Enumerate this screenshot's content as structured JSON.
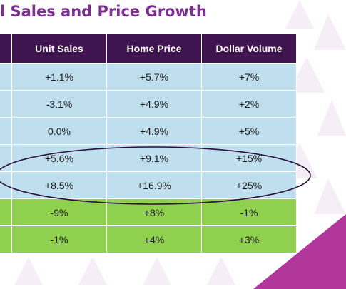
{
  "slide": {
    "title": "l Sales and Price Growth",
    "accent_color": "#7b2f8e",
    "header_color": "#40144f",
    "row_color_blue": "#c0dfee",
    "row_color_green": "#8fd04f"
  },
  "table": {
    "headers": [
      "",
      "Unit Sales",
      "Home Price",
      "Dollar Volume"
    ],
    "rows": [
      {
        "cells": [
          "",
          "+1.1%",
          "+5.7%",
          "+7%"
        ],
        "style": "blue"
      },
      {
        "cells": [
          "",
          "-3.1%",
          "+4.9%",
          "+2%"
        ],
        "style": "blue"
      },
      {
        "cells": [
          "",
          "0.0%",
          "+4.9%",
          "+5%"
        ],
        "style": "blue"
      },
      {
        "cells": [
          "",
          "+5.6%",
          "+9.1%",
          "+15%"
        ],
        "style": "blue"
      },
      {
        "cells": [
          "",
          "+8.5%",
          "+16.9%",
          "+25%"
        ],
        "style": "blue"
      },
      {
        "cells": [
          "",
          "-9%",
          "+8%",
          "-1%"
        ],
        "style": "green"
      },
      {
        "cells": [
          "",
          "-1%",
          "+4%",
          "+3%"
        ],
        "style": "green"
      }
    ]
  },
  "annotation": {
    "shape": "ellipse",
    "color": "#2a0f3a",
    "encircled_rows": [
      3,
      4
    ]
  }
}
